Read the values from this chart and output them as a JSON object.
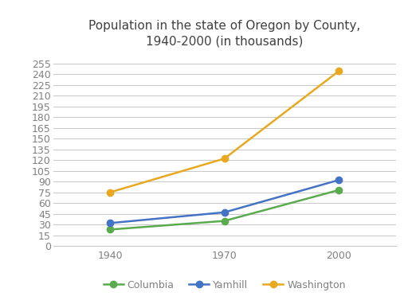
{
  "title_line1": "Population in the state of Oregon by County,",
  "title_line2": "1940-2000 (in thousands)",
  "years": [
    1940,
    1970,
    2000
  ],
  "series": {
    "Columbia": {
      "values": [
        23,
        35,
        78
      ],
      "color": "#5aab4e",
      "marker": "o"
    },
    "Yamhill": {
      "values": [
        32,
        47,
        92
      ],
      "color": "#4472c4",
      "marker": "o"
    },
    "Washington": {
      "values": [
        75,
        122,
        244
      ],
      "color": "#e8a820",
      "marker": "o"
    }
  },
  "yticks": [
    0,
    15,
    30,
    45,
    60,
    75,
    90,
    105,
    120,
    135,
    150,
    165,
    180,
    195,
    210,
    225,
    240,
    255
  ],
  "ylim": [
    0,
    268
  ],
  "xlim_left": 1925,
  "xlim_right": 2015,
  "background_color": "#ffffff",
  "grid_color": "#c8c8c8",
  "title_fontsize": 11,
  "tick_fontsize": 9,
  "tick_color": "#808080",
  "legend_fontsize": 9,
  "linewidth": 1.8,
  "markersize": 6
}
